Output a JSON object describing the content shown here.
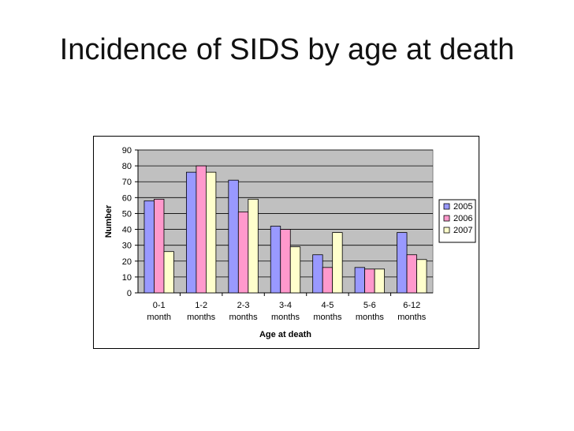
{
  "slide": {
    "title": "Incidence of SIDS by age at death"
  },
  "chart_data": {
    "type": "bar",
    "title": "",
    "xlabel": "Age at death",
    "ylabel": "Number",
    "categories": [
      [
        "0-1",
        "month"
      ],
      [
        "1-2",
        "months"
      ],
      [
        "2-3",
        "months"
      ],
      [
        "3-4",
        "months"
      ],
      [
        "4-5",
        "months"
      ],
      [
        "5-6",
        "months"
      ],
      [
        "6-12",
        "months"
      ]
    ],
    "series": [
      {
        "name": "2005",
        "color": "#9999ff",
        "values": [
          58,
          76,
          71,
          42,
          24,
          16,
          38
        ]
      },
      {
        "name": "2006",
        "color": "#ff99cc",
        "values": [
          59,
          80,
          51,
          40,
          16,
          15,
          24
        ]
      },
      {
        "name": "2007",
        "color": "#ffffcc",
        "values": [
          26,
          76,
          59,
          29,
          38,
          15,
          21
        ]
      }
    ],
    "ylim": [
      0,
      90
    ],
    "yticks": [
      0,
      10,
      20,
      30,
      40,
      50,
      60,
      70,
      80,
      90
    ],
    "grid": true,
    "plot_background": "#c0c0c0",
    "legend_position": "right"
  }
}
